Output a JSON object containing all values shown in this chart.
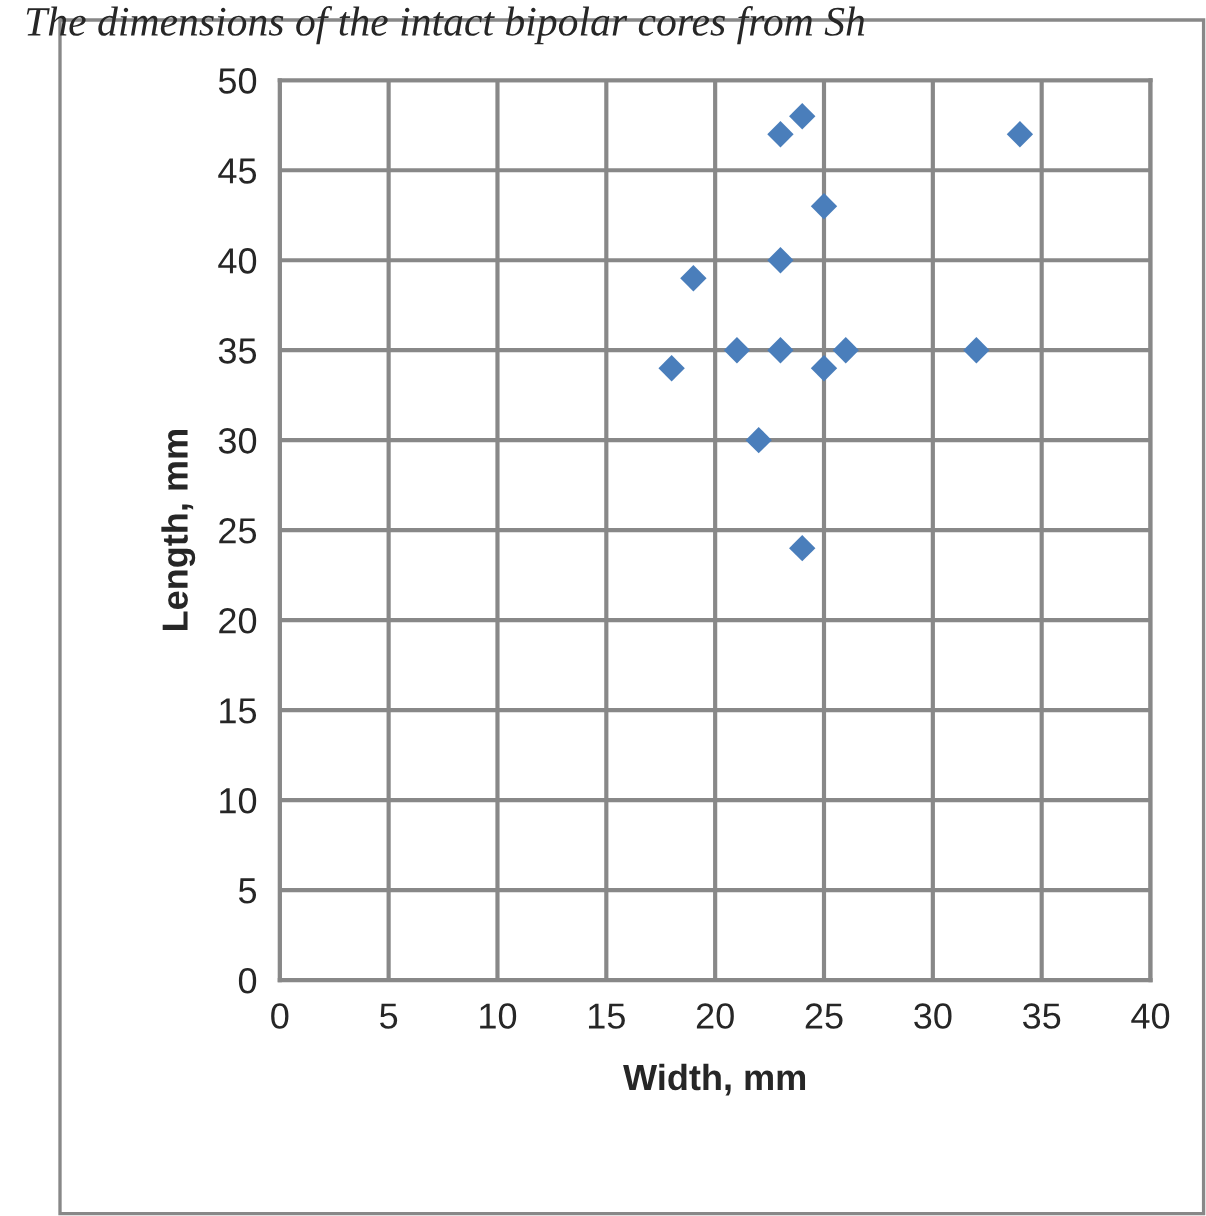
{
  "chart_data": {
    "type": "scatter",
    "title": "The dimensions of the intact bipolar cores from Sh",
    "xlabel": "Width, mm",
    "ylabel": "Length, mm",
    "x": [
      18,
      19,
      21,
      22,
      23,
      23,
      23,
      24,
      24,
      25,
      25,
      26,
      32,
      34
    ],
    "series": [
      {
        "color": "#4a7ebb",
        "values": [
          34,
          39,
          35,
          30,
          47,
          40,
          35,
          48,
          24,
          43,
          34,
          35,
          35,
          47
        ]
      }
    ],
    "xlim": [
      0,
      40
    ],
    "xticks": [
      0,
      5,
      10,
      15,
      20,
      25,
      30,
      35,
      40
    ],
    "ylim": [
      0,
      50
    ],
    "yticks": [
      0,
      5,
      10,
      15,
      20,
      25,
      30,
      35,
      40,
      45,
      50
    ],
    "grid": true,
    "marker": "diamond",
    "legend": false
  }
}
